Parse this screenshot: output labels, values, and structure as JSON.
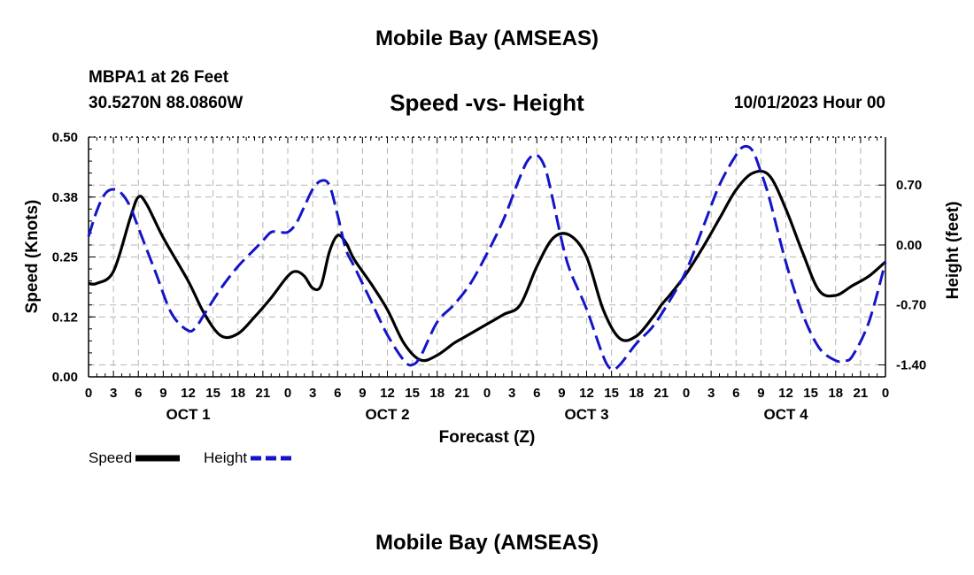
{
  "page": {
    "title": "Mobile Bay (AMSEAS)",
    "footer_title": "Mobile Bay (AMSEAS)",
    "station": "MBPA1 at 26 Feet",
    "coords": "30.5270N  88.0860W",
    "chart_title": "Speed -vs- Height",
    "forecast_time": "10/01/2023 Hour 00"
  },
  "colors": {
    "speed": "#000000",
    "height": "#1414c8",
    "grid": "#b4b4b4"
  },
  "chart_data": {
    "type": "line",
    "title": "Speed -vs- Height",
    "xlabel": "Forecast (Z)",
    "ylabel_left": "Speed (Knots)",
    "ylabel_right": "Height (feet)",
    "x_range": [
      0,
      96
    ],
    "x_unit": "hours since 10/01/2023 00Z",
    "x_tick_values": [
      0,
      3,
      6,
      9,
      12,
      15,
      18,
      21,
      24,
      27,
      30,
      33,
      36,
      39,
      42,
      45,
      48,
      51,
      54,
      57,
      60,
      63,
      66,
      69,
      72,
      75,
      78,
      81,
      84,
      87,
      90,
      93,
      96
    ],
    "x_tick_labels": [
      "0",
      "3",
      "6",
      "9",
      "12",
      "15",
      "18",
      "21",
      "0",
      "3",
      "6",
      "9",
      "12",
      "15",
      "18",
      "21",
      "0",
      "3",
      "6",
      "9",
      "12",
      "15",
      "18",
      "21",
      "0",
      "3",
      "6",
      "9",
      "12",
      "15",
      "18",
      "21",
      "0"
    ],
    "day_labels": [
      {
        "x": 12,
        "label": "OCT 1"
      },
      {
        "x": 36,
        "label": "OCT 2"
      },
      {
        "x": 60,
        "label": "OCT 3"
      },
      {
        "x": 84,
        "label": "OCT 4"
      }
    ],
    "y_left_range": [
      0,
      0.5
    ],
    "y_left_ticks": [
      {
        "value": 0.0,
        "label": "0.00"
      },
      {
        "value": 0.125,
        "label": "0.12"
      },
      {
        "value": 0.25,
        "label": "0.25"
      },
      {
        "value": 0.375,
        "label": "0.38"
      },
      {
        "value": 0.5,
        "label": "0.50"
      }
    ],
    "y_right_range": [
      -1.54,
      1.26
    ],
    "y_right_ticks": [
      {
        "value": 0.7,
        "label": "0.70"
      },
      {
        "value": 0.0,
        "label": "0.00"
      },
      {
        "value": -0.7,
        "label": "-0.70"
      },
      {
        "value": -1.4,
        "label": "-1.40"
      }
    ],
    "series": [
      {
        "name": "Speed",
        "axis": "left",
        "style": "solid",
        "x": [
          0,
          1,
          3,
          5,
          6,
          7,
          9,
          12,
          14,
          16,
          18,
          20,
          22,
          24,
          25,
          26,
          27,
          28,
          29,
          30,
          31,
          32,
          34,
          36,
          38,
          40,
          42,
          44,
          45,
          46,
          48,
          50,
          52,
          54,
          56,
          58,
          60,
          62,
          64,
          66,
          68,
          69,
          70,
          72,
          74,
          76,
          78,
          80,
          82,
          84,
          86,
          88,
          90,
          92,
          94,
          96
        ],
        "values": [
          0.195,
          0.195,
          0.22,
          0.33,
          0.375,
          0.36,
          0.29,
          0.2,
          0.13,
          0.085,
          0.09,
          0.125,
          0.165,
          0.21,
          0.22,
          0.21,
          0.185,
          0.19,
          0.26,
          0.295,
          0.28,
          0.245,
          0.195,
          0.14,
          0.07,
          0.035,
          0.045,
          0.07,
          0.08,
          0.09,
          0.11,
          0.13,
          0.15,
          0.23,
          0.29,
          0.295,
          0.25,
          0.14,
          0.08,
          0.085,
          0.125,
          0.15,
          0.17,
          0.215,
          0.27,
          0.33,
          0.39,
          0.425,
          0.42,
          0.35,
          0.26,
          0.18,
          0.17,
          0.19,
          0.21,
          0.24
        ]
      },
      {
        "name": "Height",
        "axis": "right",
        "style": "dashed",
        "x": [
          0,
          1,
          2,
          3,
          4,
          5,
          6,
          8,
          10,
          12,
          13,
          14,
          16,
          18,
          20,
          21,
          22,
          23,
          24,
          25,
          26,
          27,
          28,
          29,
          30,
          31,
          32,
          34,
          36,
          38,
          39,
          40,
          42,
          44,
          46,
          48,
          50,
          52,
          53,
          54,
          55,
          56,
          57,
          58,
          60,
          62,
          63,
          64,
          66,
          68,
          70,
          72,
          74,
          76,
          78,
          79,
          80,
          81,
          82,
          84,
          86,
          88,
          90,
          91,
          92,
          94,
          96
        ],
        "values": [
          0.1,
          0.4,
          0.6,
          0.65,
          0.6,
          0.45,
          0.2,
          -0.3,
          -0.8,
          -1.0,
          -0.95,
          -0.8,
          -0.5,
          -0.25,
          -0.05,
          0.05,
          0.15,
          0.15,
          0.15,
          0.25,
          0.45,
          0.65,
          0.75,
          0.7,
          0.35,
          -0.05,
          -0.25,
          -0.65,
          -1.05,
          -1.35,
          -1.4,
          -1.3,
          -0.9,
          -0.7,
          -0.45,
          -0.1,
          0.3,
          0.8,
          1.0,
          1.05,
          0.9,
          0.5,
          0.05,
          -0.3,
          -0.75,
          -1.3,
          -1.45,
          -1.4,
          -1.15,
          -0.95,
          -0.65,
          -0.3,
          0.2,
          0.7,
          1.05,
          1.15,
          1.1,
          0.85,
          0.55,
          -0.2,
          -0.8,
          -1.2,
          -1.35,
          -1.35,
          -1.3,
          -0.9,
          -0.2
        ]
      }
    ],
    "legend": [
      {
        "label": "Speed",
        "style": "solid"
      },
      {
        "label": "Height",
        "style": "dashed"
      }
    ],
    "grid": true,
    "legend_position": "bottom-left"
  }
}
